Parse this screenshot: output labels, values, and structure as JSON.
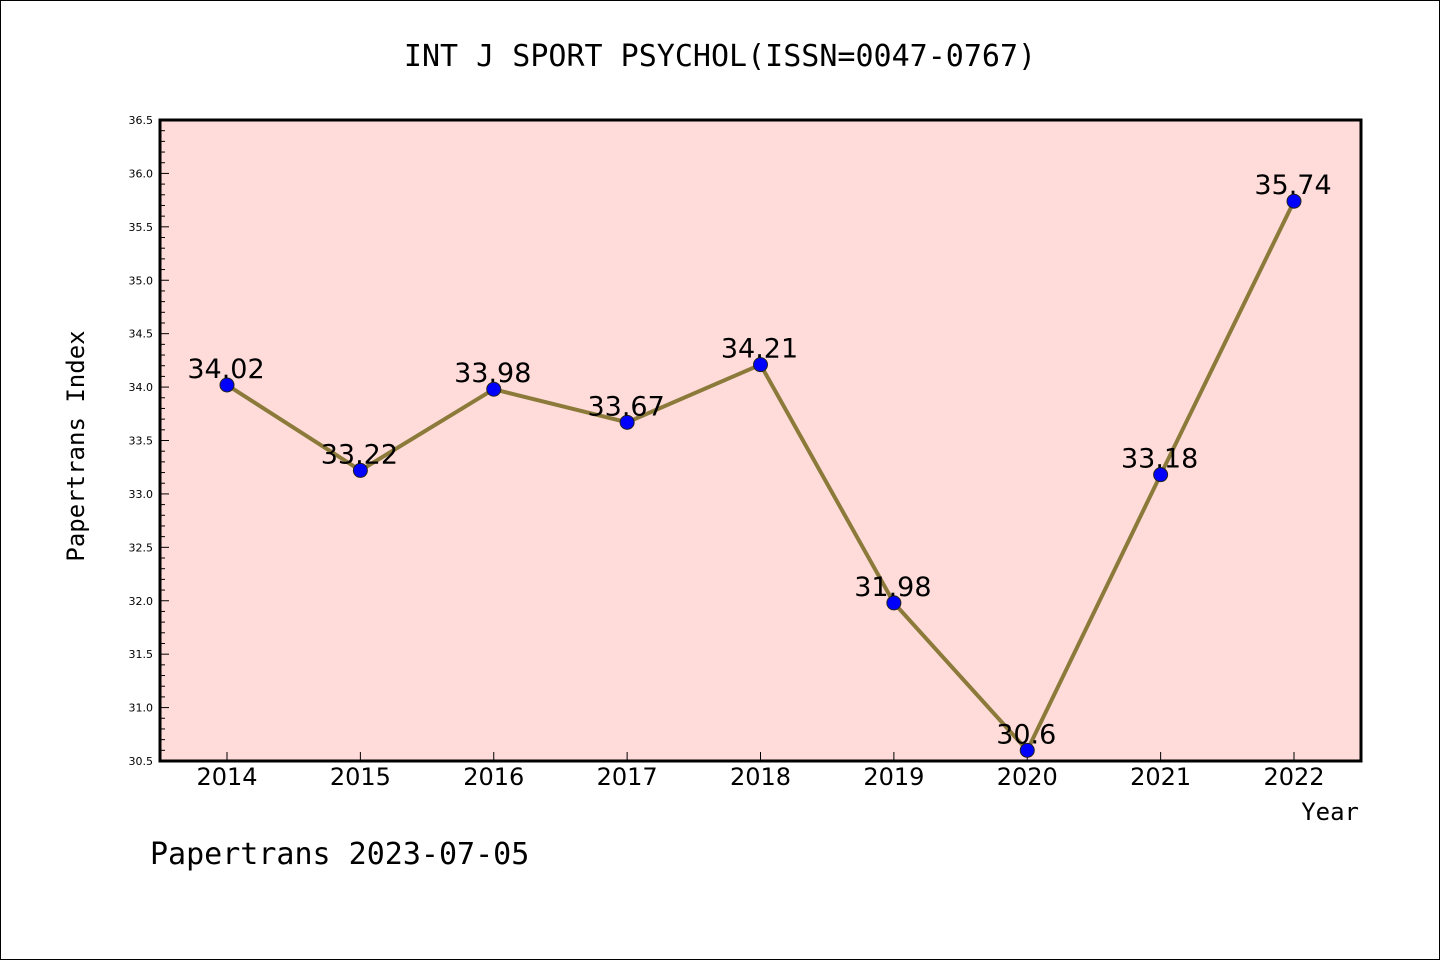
{
  "chart_data": {
    "type": "line",
    "title": "INT J SPORT PSYCHOL(ISSN=0047-0767)",
    "xlabel": "Year",
    "ylabel": "Papertrans Index",
    "categories": [
      "2014",
      "2015",
      "2016",
      "2017",
      "2018",
      "2019",
      "2020",
      "2021",
      "2022"
    ],
    "series": [
      {
        "values": [
          34.02,
          33.22,
          33.98,
          33.67,
          34.21,
          31.98,
          30.6,
          33.18,
          35.74
        ],
        "labels": [
          "34.02",
          "33.22",
          "33.98",
          "33.67",
          "34.21",
          "31.98",
          "30.6",
          "33.18",
          "35.74"
        ],
        "line_color": "#8b7a3a",
        "marker_color": "#0000ff"
      }
    ],
    "ylim": [
      30.5,
      36.5
    ],
    "yticks": [
      "30.5",
      "31.0",
      "31.5",
      "32.0",
      "32.5",
      "33.0",
      "33.5",
      "34.0",
      "34.5",
      "35.0",
      "35.5",
      "36.0",
      "36.5"
    ],
    "grid": false,
    "legend": "none",
    "plot_background": "#ffdcd9"
  },
  "footer": "Papertrans 2023-07-05"
}
